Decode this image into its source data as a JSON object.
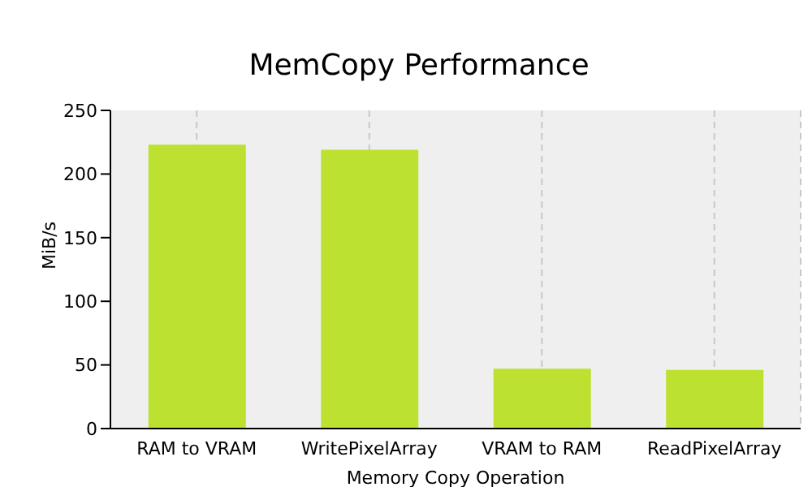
{
  "chart_data": {
    "type": "bar",
    "title": "MemCopy Performance",
    "xlabel": "Memory Copy Operation",
    "ylabel": "MiB/s",
    "categories": [
      "RAM to VRAM",
      "WritePixelArray",
      "VRAM to RAM",
      "ReadPixelArray"
    ],
    "values": [
      223,
      219,
      47,
      46
    ],
    "color": "#bce130",
    "ylim": [
      0,
      250
    ],
    "yticks": [
      0,
      50,
      100,
      150,
      200,
      250
    ],
    "grid": "x"
  }
}
